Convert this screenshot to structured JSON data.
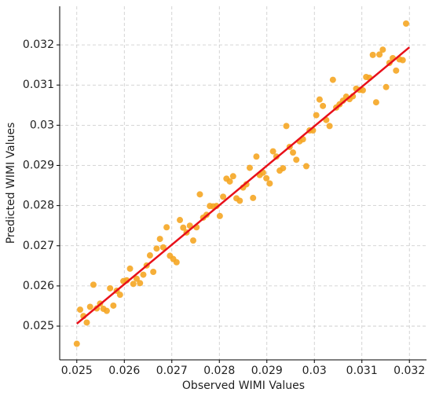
{
  "chart_data": {
    "type": "scatter",
    "x_label": "Observed WIMI Values",
    "y_label": "Predicted WIMI Values",
    "xlim": [
      0.02464,
      0.03236
    ],
    "ylim": [
      0.02416,
      0.03296
    ],
    "xticks": [
      0.025,
      0.026,
      0.027,
      0.028,
      0.029,
      0.03,
      0.031,
      0.032
    ],
    "yticks": [
      0.025,
      0.026,
      0.027,
      0.028,
      0.029,
      0.03,
      0.031,
      0.032
    ],
    "grid": true,
    "series": [
      {
        "type": "scatter",
        "color": "#f5a623",
        "x": [
          0.025,
          0.02507,
          0.02514,
          0.02521,
          0.02528,
          0.02535,
          0.02542,
          0.02549,
          0.02556,
          0.02563,
          0.0257,
          0.02577,
          0.02584,
          0.02591,
          0.02598,
          0.02605,
          0.02612,
          0.02619,
          0.02626,
          0.02633,
          0.0264,
          0.02647,
          0.02654,
          0.02661,
          0.02668,
          0.02675,
          0.02682,
          0.02689,
          0.02696,
          0.02703,
          0.0271,
          0.02717,
          0.02724,
          0.02731,
          0.02738,
          0.02745,
          0.02752,
          0.02759,
          0.02766,
          0.02773,
          0.0278,
          0.02787,
          0.02794,
          0.02801,
          0.02808,
          0.02815,
          0.02822,
          0.02829,
          0.02836,
          0.02843,
          0.0285,
          0.02857,
          0.02864,
          0.02871,
          0.02878,
          0.02885,
          0.02892,
          0.02899,
          0.02906,
          0.02913,
          0.0292,
          0.02927,
          0.02934,
          0.02941,
          0.02948,
          0.02955,
          0.02962,
          0.02969,
          0.02976,
          0.02983,
          0.0299,
          0.02997,
          0.03004,
          0.03011,
          0.03018,
          0.03025,
          0.03032,
          0.03039,
          0.03046,
          0.03053,
          0.0306,
          0.03067,
          0.03074,
          0.03081,
          0.03088,
          0.03095,
          0.03102,
          0.03109,
          0.03116,
          0.03123,
          0.0313,
          0.03137,
          0.03144,
          0.03151,
          0.03158,
          0.03165,
          0.03172,
          0.03179,
          0.03186,
          0.03193
        ],
        "values": [
          0.02456,
          0.02541,
          0.02525,
          0.02509,
          0.02548,
          0.02603,
          0.02544,
          0.02556,
          0.02543,
          0.02538,
          0.02594,
          0.02551,
          0.02588,
          0.02578,
          0.02612,
          0.02614,
          0.02643,
          0.02605,
          0.02618,
          0.02607,
          0.02628,
          0.02651,
          0.02676,
          0.02635,
          0.02693,
          0.02717,
          0.02696,
          0.02746,
          0.02675,
          0.02667,
          0.02659,
          0.02764,
          0.02745,
          0.02733,
          0.0275,
          0.02713,
          0.02746,
          0.02828,
          0.0277,
          0.02777,
          0.02799,
          0.02798,
          0.02799,
          0.02774,
          0.02822,
          0.02867,
          0.0286,
          0.02873,
          0.02818,
          0.02812,
          0.02845,
          0.02853,
          0.02894,
          0.02819,
          0.02922,
          0.02876,
          0.02882,
          0.02868,
          0.02855,
          0.02935,
          0.02922,
          0.02887,
          0.02893,
          0.02998,
          0.02946,
          0.02932,
          0.02914,
          0.0296,
          0.02965,
          0.02898,
          0.02987,
          0.02987,
          0.03025,
          0.03064,
          0.03048,
          0.03013,
          0.02998,
          0.03113,
          0.03044,
          0.03052,
          0.03061,
          0.03071,
          0.03065,
          0.03072,
          0.03091,
          0.03088,
          0.03087,
          0.0312,
          0.03118,
          0.03175,
          0.03057,
          0.03176,
          0.03188,
          0.03095,
          0.03155,
          0.03167,
          0.03136,
          0.03164,
          0.03162,
          0.03253
        ]
      },
      {
        "type": "line",
        "color": "#e8101a",
        "x": [
          0.025,
          0.032
        ],
        "values": [
          0.02506,
          0.03194
        ]
      }
    ]
  }
}
